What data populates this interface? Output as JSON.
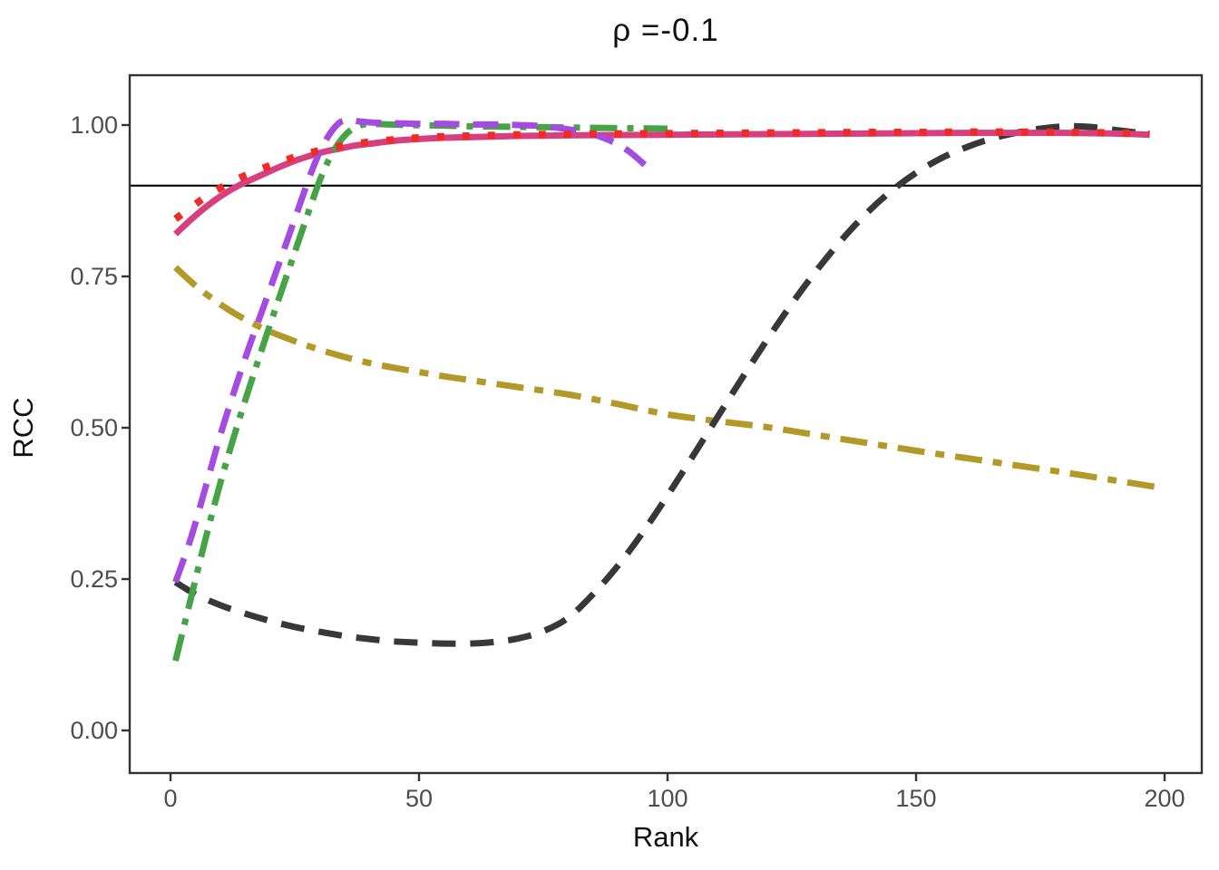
{
  "title": "ρ =-0.1",
  "axes": {
    "x_label": "Rank",
    "y_label": "RCC",
    "x_tick_labels": [
      "0",
      "50",
      "100",
      "150",
      "200"
    ],
    "x_tick_values": [
      0,
      50,
      100,
      150,
      200
    ],
    "y_tick_labels": [
      "0.00",
      "0.25",
      "0.50",
      "0.75",
      "1.00"
    ],
    "y_tick_values": [
      0,
      0.25,
      0.5,
      0.75,
      1.0
    ]
  },
  "colors": {
    "background": "#ffffff",
    "panel_border": "#333333",
    "tick_mark": "#333333",
    "tick_text": "#4d4d4d",
    "title_text": "#111111",
    "reference_line": "#000000"
  },
  "chart_data": {
    "type": "line",
    "title": "ρ =-0.1",
    "xlabel": "Rank",
    "ylabel": "RCC",
    "xlim": [
      0,
      200
    ],
    "ylim": [
      0.0,
      1.0
    ],
    "grid": false,
    "legend_position": "none",
    "reference_line": {
      "y": 0.9,
      "color": "#000000",
      "linetype": "solid",
      "width": 2.2
    },
    "series": [
      {
        "name": "olive-dashdot",
        "color": "#B39A28",
        "linetype": "dotdash",
        "dash_pattern": [
          30,
          12,
          10,
          12
        ],
        "width": 7,
        "x": [
          1,
          5,
          10,
          15,
          20,
          25,
          30,
          35,
          40,
          45,
          50,
          55,
          60,
          70,
          80,
          90,
          100,
          110,
          120,
          130,
          140,
          150,
          160,
          170,
          180,
          190,
          200
        ],
        "y": [
          0.765,
          0.735,
          0.704,
          0.679,
          0.659,
          0.643,
          0.629,
          0.617,
          0.607,
          0.599,
          0.592,
          0.585,
          0.579,
          0.567,
          0.555,
          0.539,
          0.522,
          0.511,
          0.501,
          0.488,
          0.475,
          0.462,
          0.45,
          0.438,
          0.426,
          0.413,
          0.4
        ]
      },
      {
        "name": "black-dashed",
        "color": "#383838",
        "linetype": "dashed",
        "dash_pattern": [
          26,
          16
        ],
        "width": 7,
        "x": [
          1,
          5,
          10,
          15,
          20,
          25,
          30,
          35,
          40,
          45,
          50,
          55,
          60,
          65,
          70,
          75,
          80,
          85,
          90,
          95,
          100,
          105,
          110,
          115,
          120,
          125,
          130,
          135,
          140,
          145,
          150,
          155,
          160,
          165,
          170,
          175,
          180,
          185,
          190,
          193,
          196
        ],
        "y": [
          0.245,
          0.225,
          0.207,
          0.193,
          0.181,
          0.171,
          0.163,
          0.156,
          0.151,
          0.147,
          0.145,
          0.1435,
          0.1435,
          0.146,
          0.152,
          0.164,
          0.186,
          0.225,
          0.272,
          0.327,
          0.388,
          0.452,
          0.517,
          0.582,
          0.645,
          0.705,
          0.76,
          0.81,
          0.854,
          0.891,
          0.921,
          0.945,
          0.963,
          0.977,
          0.987,
          0.994,
          0.998,
          0.997,
          0.992,
          0.989,
          0.986
        ]
      },
      {
        "name": "pink-solid",
        "color": "#D6407E",
        "linetype": "solid",
        "dash_pattern": null,
        "width": 7,
        "x": [
          1,
          4,
          7,
          10,
          13,
          16,
          19,
          22,
          25,
          28,
          31,
          34,
          37,
          40,
          45,
          50,
          55,
          60,
          70,
          80,
          90,
          100,
          110,
          120,
          130,
          140,
          150,
          160,
          170,
          180,
          190,
          197
        ],
        "y": [
          0.82,
          0.843,
          0.864,
          0.882,
          0.897,
          0.909,
          0.92,
          0.931,
          0.941,
          0.949,
          0.956,
          0.961,
          0.966,
          0.969,
          0.974,
          0.977,
          0.979,
          0.98,
          0.982,
          0.983,
          0.9835,
          0.984,
          0.9845,
          0.985,
          0.9855,
          0.986,
          0.9865,
          0.987,
          0.987,
          0.987,
          0.986,
          0.984
        ]
      },
      {
        "name": "green-dashdot",
        "color": "#46A346",
        "linetype": "dotdash",
        "dash_pattern": [
          30,
          11,
          7,
          11
        ],
        "width": 7,
        "x": [
          1,
          4,
          7,
          10,
          13,
          16,
          19,
          22,
          25,
          28,
          30,
          32,
          34,
          36,
          38,
          40,
          44,
          48,
          55,
          60,
          70,
          80,
          90,
          100
        ],
        "y": [
          0.115,
          0.215,
          0.315,
          0.408,
          0.492,
          0.57,
          0.645,
          0.718,
          0.79,
          0.862,
          0.908,
          0.945,
          0.972,
          0.99,
          0.999,
          1.002,
          1.001,
          1.0,
          0.999,
          0.998,
          0.997,
          0.996,
          0.995,
          0.994
        ]
      },
      {
        "name": "purple-longdash",
        "color": "#A54CE0",
        "linetype": "longdash",
        "dash_pattern": [
          28,
          15
        ],
        "width": 7,
        "x": [
          1,
          4,
          7,
          10,
          13,
          16,
          19,
          22,
          25,
          28,
          30,
          32,
          34,
          36,
          38,
          41,
          45,
          50,
          55,
          60,
          65,
          70,
          75,
          80,
          84,
          88,
          92,
          96
        ],
        "y": [
          0.245,
          0.315,
          0.4,
          0.487,
          0.565,
          0.638,
          0.706,
          0.775,
          0.845,
          0.915,
          0.955,
          0.985,
          1.004,
          1.008,
          1.006,
          1.004,
          1.003,
          1.002,
          1.002,
          1.001,
          1.001,
          1.0,
          0.998,
          0.993,
          0.987,
          0.976,
          0.958,
          0.93
        ]
      },
      {
        "name": "red-dotted",
        "color": "#F02B26",
        "linetype": "dotted",
        "dash_pattern": [
          8,
          20
        ],
        "width": 8,
        "x": [
          1,
          4,
          7,
          10,
          13,
          16,
          19,
          22,
          25,
          28,
          31,
          34,
          37,
          40,
          45,
          50,
          55,
          60,
          70,
          80,
          90,
          100,
          110,
          120,
          130,
          140,
          150,
          160,
          170,
          180,
          190,
          197
        ],
        "y": [
          0.845,
          0.863,
          0.881,
          0.896,
          0.909,
          0.92,
          0.93,
          0.939,
          0.947,
          0.954,
          0.96,
          0.965,
          0.969,
          0.972,
          0.976,
          0.979,
          0.981,
          0.982,
          0.984,
          0.985,
          0.9855,
          0.986,
          0.9865,
          0.987,
          0.9875,
          0.988,
          0.988,
          0.9885,
          0.9885,
          0.988,
          0.987,
          0.985
        ]
      }
    ]
  }
}
